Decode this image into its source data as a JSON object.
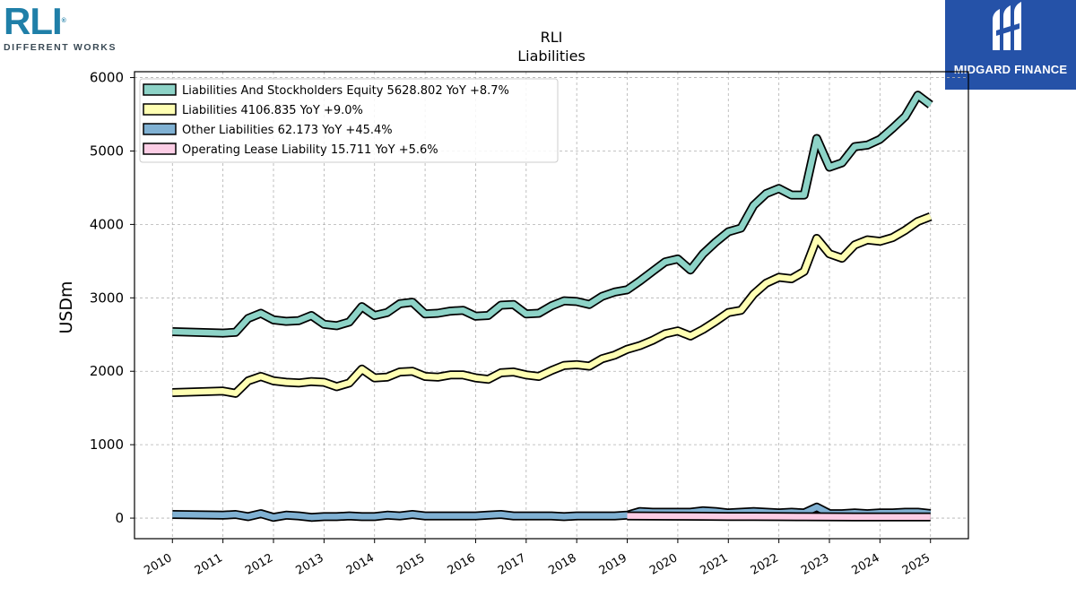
{
  "logos": {
    "left_mark": "RLI",
    "left_reg": "®",
    "left_tagline": "DIFFERENT WORKS",
    "right_name": "MIDGARD FINANCE",
    "right_color": "#2552a8"
  },
  "chart_data": {
    "type": "line",
    "title": "RLI",
    "subtitle": "Liabilities",
    "ylabel": "USDm",
    "xlabel": "",
    "ylim": [
      -280,
      6080
    ],
    "xlim": [
      2009.25,
      2025.75
    ],
    "yticks": [
      0,
      1000,
      2000,
      3000,
      4000,
      5000,
      6000
    ],
    "xticks": [
      "2010",
      "2011",
      "2012",
      "2013",
      "2014",
      "2015",
      "2016",
      "2017",
      "2018",
      "2019",
      "2020",
      "2021",
      "2022",
      "2023",
      "2024",
      "2025"
    ],
    "grid": true,
    "legend_position": "top-left",
    "series": [
      {
        "name": "Liabilities And Stockholders Equity",
        "legend": "Liabilities And Stockholders Equity  5628.802 YoY +8.7%",
        "color": "#8dd3c7",
        "x": [
          2010.0,
          2011.0,
          2011.25,
          2011.5,
          2011.75,
          2012.0,
          2012.25,
          2012.5,
          2012.75,
          2013.0,
          2013.25,
          2013.5,
          2013.75,
          2014.0,
          2014.25,
          2014.5,
          2014.75,
          2015.0,
          2015.25,
          2015.5,
          2015.75,
          2016.0,
          2016.25,
          2016.5,
          2016.75,
          2017.0,
          2017.25,
          2017.5,
          2017.75,
          2018.0,
          2018.25,
          2018.5,
          2018.75,
          2019.0,
          2019.25,
          2019.5,
          2019.75,
          2020.0,
          2020.25,
          2020.5,
          2020.75,
          2021.0,
          2021.25,
          2021.5,
          2021.75,
          2022.0,
          2022.25,
          2022.5,
          2022.75,
          2023.0,
          2023.25,
          2023.5,
          2023.75,
          2024.0,
          2024.25,
          2024.5,
          2024.75,
          2025.0
        ],
        "y": [
          2540,
          2520,
          2530,
          2720,
          2790,
          2700,
          2680,
          2690,
          2760,
          2640,
          2620,
          2670,
          2880,
          2760,
          2800,
          2920,
          2940,
          2780,
          2790,
          2820,
          2830,
          2750,
          2760,
          2900,
          2910,
          2780,
          2790,
          2890,
          2960,
          2950,
          2910,
          3020,
          3080,
          3110,
          3230,
          3360,
          3490,
          3530,
          3380,
          3600,
          3760,
          3900,
          3950,
          4260,
          4420,
          4490,
          4400,
          4400,
          5170,
          4780,
          4840,
          5060,
          5080,
          5160,
          5310,
          5470,
          5760,
          5629
        ]
      },
      {
        "name": "Liabilities",
        "legend": "Liabilities  4106.835 YoY +9.0%",
        "color": "#ffffb3",
        "x": [
          2010.0,
          2011.0,
          2011.25,
          2011.5,
          2011.75,
          2012.0,
          2012.25,
          2012.5,
          2012.75,
          2013.0,
          2013.25,
          2013.5,
          2013.75,
          2014.0,
          2014.25,
          2014.5,
          2014.75,
          2015.0,
          2015.25,
          2015.5,
          2015.75,
          2016.0,
          2016.25,
          2016.5,
          2016.75,
          2017.0,
          2017.25,
          2017.5,
          2017.75,
          2018.0,
          2018.25,
          2018.5,
          2018.75,
          2019.0,
          2019.25,
          2019.5,
          2019.75,
          2020.0,
          2020.25,
          2020.5,
          2020.75,
          2021.0,
          2021.25,
          2021.5,
          2021.75,
          2022.0,
          2022.25,
          2022.5,
          2022.75,
          2023.0,
          2023.25,
          2023.5,
          2023.75,
          2024.0,
          2024.25,
          2024.5,
          2024.75,
          2025.0
        ],
        "y": [
          1710,
          1730,
          1700,
          1870,
          1930,
          1870,
          1850,
          1840,
          1860,
          1850,
          1790,
          1840,
          2030,
          1910,
          1920,
          1990,
          2000,
          1930,
          1920,
          1950,
          1950,
          1910,
          1890,
          1980,
          1990,
          1950,
          1930,
          2010,
          2080,
          2090,
          2070,
          2170,
          2220,
          2300,
          2350,
          2420,
          2510,
          2550,
          2480,
          2570,
          2680,
          2800,
          2830,
          3050,
          3200,
          3280,
          3260,
          3360,
          3810,
          3600,
          3540,
          3720,
          3790,
          3770,
          3820,
          3920,
          4040,
          4107
        ]
      },
      {
        "name": "Other Liabilities",
        "legend": "Other Liabilities  62.173 YoY +45.4%",
        "color": "#80b1d3",
        "x": [
          2010.0,
          2011.0,
          2011.25,
          2011.5,
          2011.75,
          2012.0,
          2012.25,
          2012.5,
          2012.75,
          2013.0,
          2013.25,
          2013.5,
          2013.75,
          2014.0,
          2014.25,
          2014.5,
          2014.75,
          2015.0,
          2015.25,
          2015.5,
          2015.75,
          2016.0,
          2016.25,
          2016.5,
          2016.75,
          2017.0,
          2017.25,
          2017.5,
          2017.75,
          2018.0,
          2018.25,
          2018.5,
          2018.75,
          2019.0,
          2019.25,
          2019.5,
          2019.75,
          2020.0,
          2020.25,
          2020.5,
          2020.75,
          2021.0,
          2021.25,
          2021.5,
          2021.75,
          2022.0,
          2022.25,
          2022.5,
          2022.75,
          2023.0,
          2023.25,
          2023.5,
          2023.75,
          2024.0,
          2024.25,
          2024.5,
          2024.75,
          2025.0
        ],
        "y": [
          50,
          40,
          50,
          20,
          60,
          10,
          40,
          30,
          10,
          20,
          20,
          30,
          20,
          20,
          40,
          30,
          50,
          30,
          30,
          30,
          30,
          30,
          40,
          50,
          30,
          30,
          30,
          30,
          20,
          30,
          30,
          30,
          30,
          40,
          90,
          80,
          80,
          80,
          80,
          100,
          90,
          70,
          80,
          90,
          80,
          70,
          80,
          70,
          150,
          60,
          60,
          70,
          60,
          70,
          70,
          80,
          80,
          62
        ]
      },
      {
        "name": "Operating Lease Liability",
        "legend": "Operating Lease Liability  15.711 YoY +5.6%",
        "color": "#fccde5",
        "x": [
          2019.0,
          2019.5,
          2020.0,
          2020.5,
          2021.0,
          2021.5,
          2022.0,
          2022.5,
          2023.0,
          2023.5,
          2024.0,
          2024.5,
          2025.0
        ],
        "y": [
          30,
          28,
          26,
          25,
          23,
          22,
          20,
          19,
          18,
          17,
          16,
          16,
          16
        ]
      }
    ]
  }
}
